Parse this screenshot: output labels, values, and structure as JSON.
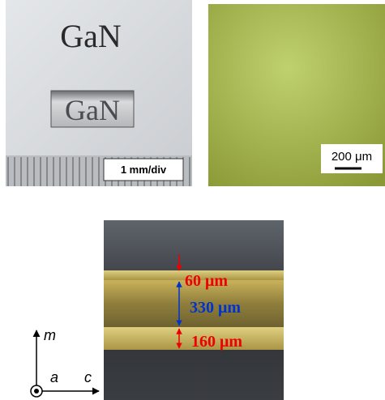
{
  "sample_photo": {
    "paper_text": "GaN",
    "crystal_text": "GaN",
    "scale_label": "1 mm/div"
  },
  "surface_image": {
    "scale_label": "200 μm"
  },
  "cross_section": {
    "layers": [
      {
        "label": "60 μm"
      },
      {
        "label": "330 μm"
      },
      {
        "label": "160 μm"
      }
    ]
  },
  "axes": {
    "m": "m",
    "a": "a",
    "c": "c"
  }
}
